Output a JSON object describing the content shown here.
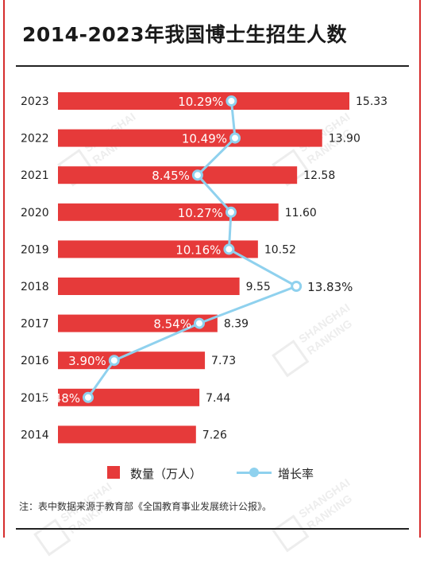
{
  "title": "2014-2023年我国博士生招生人数",
  "legend": {
    "bar_label": "数量（万人）",
    "line_label": "增长率"
  },
  "note": "注：表中数据来源于教育部《全国教育事业发展统计公报》。",
  "watermark": {
    "line1": "SHANGHAI",
    "line2": "RANKING"
  },
  "colors": {
    "bar": "#e63a3a",
    "line": "#8fd1ee",
    "frame": "#d62e2e"
  },
  "chart_data": {
    "type": "bar",
    "orientation": "horizontal",
    "categories": [
      "2023",
      "2022",
      "2021",
      "2020",
      "2019",
      "2018",
      "2017",
      "2016",
      "2015",
      "2014"
    ],
    "series": [
      {
        "name": "数量（万人）",
        "type": "bar",
        "values": [
          15.33,
          13.9,
          12.58,
          11.6,
          10.52,
          9.55,
          8.39,
          7.73,
          7.44,
          7.26
        ],
        "value_labels": [
          "15.33",
          "13.90",
          "12.58",
          "11.60",
          "10.52",
          "9.55",
          "8.39",
          "7.73",
          "7.44",
          "7.26"
        ]
      },
      {
        "name": "增长率",
        "type": "line",
        "values": [
          10.29,
          10.49,
          8.45,
          10.27,
          10.16,
          13.83,
          8.54,
          3.9,
          2.48,
          null
        ],
        "value_labels": [
          "10.29%",
          "10.49%",
          "8.45%",
          "10.27%",
          "10.16%",
          "13.83%",
          "8.54%",
          "3.90%",
          "2.48%",
          ""
        ]
      }
    ],
    "xlim": [
      0,
      15.33
    ],
    "grid": false,
    "legend_position": "bottom"
  }
}
